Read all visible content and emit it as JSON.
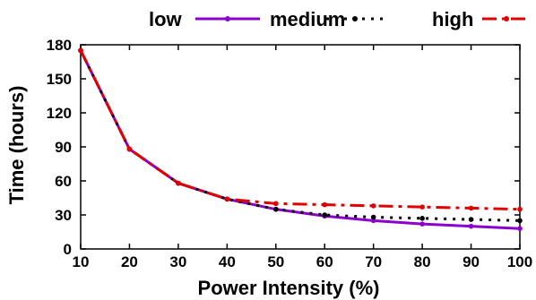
{
  "chart_data": {
    "type": "line",
    "xlabel": "Power Intensity (%)",
    "ylabel": "Time (hours)",
    "x": [
      10,
      20,
      30,
      40,
      50,
      60,
      70,
      80,
      90,
      100
    ],
    "xlim": [
      10,
      100
    ],
    "ylim": [
      0,
      180
    ],
    "xticks": [
      "10",
      "20",
      "30",
      "40",
      "50",
      "60",
      "70",
      "80",
      "90",
      "100"
    ],
    "yticks": [
      "0",
      "30",
      "60",
      "90",
      "120",
      "150",
      "180"
    ],
    "legend_position": "top",
    "grid": false,
    "series": [
      {
        "name": "low",
        "color": "#8b00cc",
        "style": "solid",
        "values": [
          175,
          88,
          58,
          44,
          35,
          29,
          25,
          22,
          20,
          18
        ]
      },
      {
        "name": "medium",
        "color": "#000000",
        "style": "dotted",
        "values": [
          175,
          88,
          58,
          44,
          35,
          30,
          28,
          27,
          26,
          25
        ]
      },
      {
        "name": "high",
        "color": "#e00000",
        "style": "dashdot",
        "values": [
          175,
          88,
          58,
          44,
          40,
          39,
          38,
          37,
          36,
          35
        ]
      }
    ]
  }
}
